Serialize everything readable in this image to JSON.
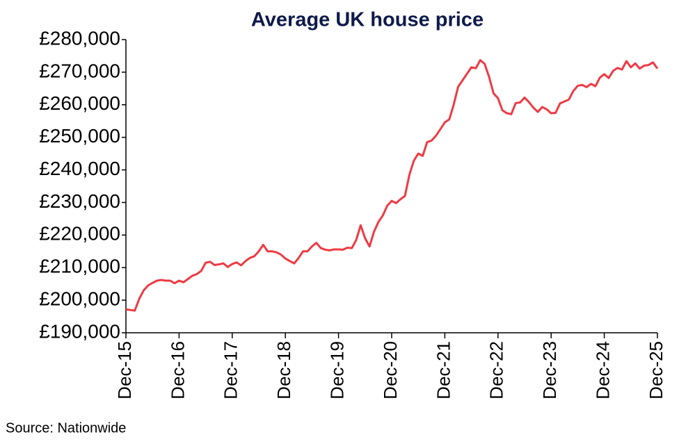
{
  "chart_data": {
    "type": "line",
    "title": "Average UK house price",
    "source": "Source: Nationwide",
    "categories": [
      "Dec-15",
      null,
      null,
      null,
      null,
      null,
      null,
      null,
      null,
      null,
      null,
      null,
      "Dec-16",
      null,
      null,
      null,
      null,
      null,
      null,
      null,
      null,
      null,
      null,
      null,
      "Dec-17",
      null,
      null,
      null,
      null,
      null,
      null,
      null,
      null,
      null,
      null,
      null,
      "Dec-18",
      null,
      null,
      null,
      null,
      null,
      null,
      null,
      null,
      null,
      null,
      null,
      "Dec-19",
      null,
      null,
      null,
      null,
      null,
      null,
      null,
      null,
      null,
      null,
      null,
      "Dec-20",
      null,
      null,
      null,
      null,
      null,
      null,
      null,
      null,
      null,
      null,
      null,
      "Dec-21",
      null,
      null,
      null,
      null,
      null,
      null,
      null,
      null,
      null,
      null,
      null,
      "Dec-22",
      null,
      null,
      null,
      null,
      null,
      null,
      null,
      null,
      null,
      null,
      null,
      "Dec-23",
      null,
      null,
      null,
      null,
      null,
      null,
      null,
      null,
      null,
      null,
      null,
      "Dec-24",
      null,
      null,
      null,
      null,
      null,
      null,
      null,
      null,
      null,
      null,
      null,
      "Dec-25"
    ],
    "series": [
      {
        "name": "Average UK house price",
        "color": "#ee3a43",
        "values": [
          197200,
          197000,
          196800,
          200400,
          203000,
          204500,
          205300,
          206000,
          206200,
          206000,
          206000,
          205200,
          206000,
          205500,
          206500,
          207500,
          208000,
          209000,
          211500,
          211800,
          210800,
          211000,
          211300,
          210200,
          211100,
          211600,
          210700,
          212000,
          213000,
          213500,
          215000,
          217000,
          215000,
          215000,
          214700,
          214000,
          212800,
          212000,
          211300,
          213000,
          215000,
          215000,
          216500,
          217600,
          216000,
          215500,
          215300,
          215600,
          215600,
          215500,
          216100,
          216000,
          218500,
          223000,
          219000,
          216500,
          221000,
          224000,
          226000,
          229000,
          230500,
          229800,
          231000,
          232000,
          238500,
          242800,
          245000,
          244300,
          248500,
          249000,
          250500,
          252500,
          254600,
          255500,
          260000,
          265500,
          267500,
          269500,
          271500,
          271200,
          273700,
          272500,
          268500,
          263500,
          262000,
          258300,
          257400,
          257100,
          260500,
          260700,
          262200,
          260800,
          259100,
          257800,
          259300,
          258600,
          257400,
          257500,
          260400,
          261000,
          261600,
          264200,
          265800,
          266100,
          265400,
          266400,
          265700,
          268300,
          269400,
          268200,
          270400,
          271300,
          270800,
          273400,
          271500,
          272700,
          271100,
          272000,
          272200,
          273000,
          271100
        ]
      }
    ],
    "ylim": [
      190000,
      280000
    ],
    "yticks": [
      {
        "value": 190000,
        "label": "£190,000"
      },
      {
        "value": 200000,
        "label": "£200,000"
      },
      {
        "value": 210000,
        "label": "£210,000"
      },
      {
        "value": 220000,
        "label": "£220,000"
      },
      {
        "value": 230000,
        "label": "£230,000"
      },
      {
        "value": 240000,
        "label": "£240,000"
      },
      {
        "value": 250000,
        "label": "£250,000"
      },
      {
        "value": 260000,
        "label": "£260,000"
      },
      {
        "value": 270000,
        "label": "£270,000"
      },
      {
        "value": 280000,
        "label": "£280,000"
      }
    ],
    "grid": false
  }
}
